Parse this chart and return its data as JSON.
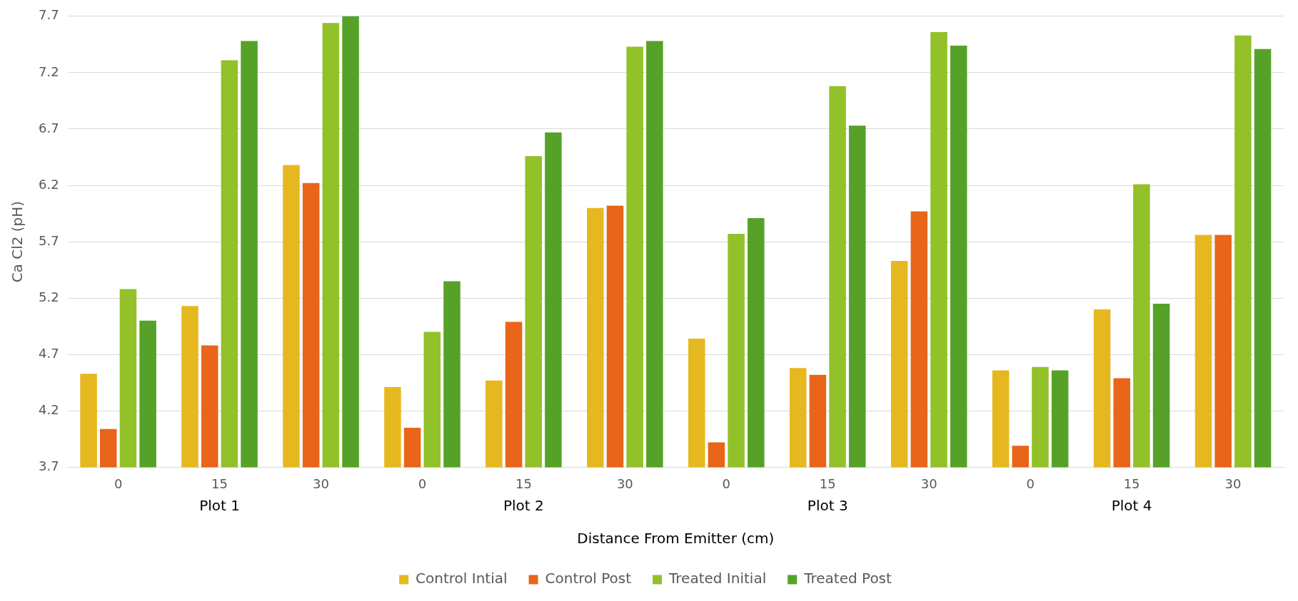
{
  "chart_data": {
    "type": "bar",
    "xlabel": "Distance From Emitter (cm)",
    "ylabel": "Ca Cl2 (pH)",
    "categories": [
      "0",
      "15",
      "30",
      "0",
      "15",
      "30",
      "0",
      "15",
      "30",
      "0",
      "15",
      "30"
    ],
    "series": [
      {
        "name": "Control Intial",
        "color": "#e6b820",
        "values": [
          4.53,
          5.13,
          6.38,
          4.41,
          4.47,
          6.0,
          4.84,
          4.58,
          5.53,
          4.56,
          5.1,
          5.76
        ]
      },
      {
        "name": "Control Post",
        "color": "#e8651a",
        "values": [
          4.04,
          4.78,
          6.22,
          4.05,
          4.99,
          6.02,
          3.92,
          4.52,
          5.97,
          3.89,
          4.49,
          5.76
        ]
      },
      {
        "name": "Treated Initial",
        "color": "#92c12a",
        "values": [
          5.28,
          7.31,
          7.64,
          4.9,
          6.46,
          7.43,
          5.77,
          7.08,
          7.56,
          4.59,
          6.21,
          7.53
        ]
      },
      {
        "name": "Treated Post",
        "color": "#56a228",
        "values": [
          5.0,
          7.48,
          7.7,
          5.35,
          6.67,
          7.48,
          5.91,
          6.73,
          7.44,
          4.56,
          5.15,
          7.41
        ]
      }
    ],
    "annotations": [
      "Plot 1",
      "Plot 2",
      "Plot 3",
      "Plot 4"
    ],
    "ylim": [
      3.7,
      7.7
    ],
    "yticks": [
      3.7,
      4.2,
      4.7,
      5.2,
      5.7,
      6.2,
      6.7,
      7.2,
      7.7
    ],
    "grid": "y",
    "legend": "bottom"
  }
}
